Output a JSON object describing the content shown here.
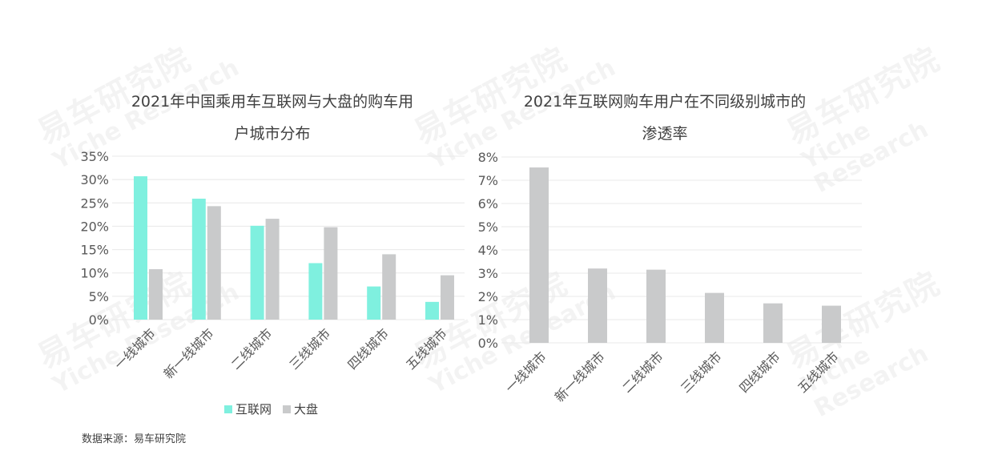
{
  "watermark": {
    "cn": "易车研究院",
    "en": "Yiche Research"
  },
  "source": "数据来源：易车研究院",
  "colors": {
    "internet": "#7ff0df",
    "overall": "#c9cacb",
    "grid": "#e8e8e8",
    "text": "#595959"
  },
  "chart_data": [
    {
      "type": "bar",
      "title_lines": [
        "2021年中国乘用车互联网与大盘的购车用",
        "户城市分布"
      ],
      "categories": [
        "一线城市",
        "新一线城市",
        "二线城市",
        "三线城市",
        "四线城市",
        "五线城市"
      ],
      "series": [
        {
          "name": "互联网",
          "values": [
            30.7,
            25.9,
            20.1,
            12.1,
            7.1,
            3.8
          ]
        },
        {
          "name": "大盘",
          "values": [
            10.8,
            24.3,
            21.6,
            19.8,
            14.0,
            9.5
          ]
        }
      ],
      "y_ticks": [
        "0%",
        "5%",
        "10%",
        "15%",
        "20%",
        "25%",
        "30%",
        "35%"
      ],
      "ylim": [
        0,
        35
      ],
      "legend_position": "bottom",
      "grid": true
    },
    {
      "type": "bar",
      "title_lines": [
        "2021年互联网购车用户在不同级别城市的",
        "渗透率"
      ],
      "categories": [
        "一线城市",
        "新一线城市",
        "二线城市",
        "三线城市",
        "四线城市",
        "五线城市"
      ],
      "series": [
        {
          "values": [
            7.55,
            3.2,
            3.15,
            2.15,
            1.7,
            1.6
          ]
        }
      ],
      "y_ticks": [
        "0%",
        "1%",
        "2%",
        "3%",
        "4%",
        "5%",
        "6%",
        "7%",
        "8%"
      ],
      "ylim": [
        0,
        8
      ],
      "grid": true
    }
  ]
}
